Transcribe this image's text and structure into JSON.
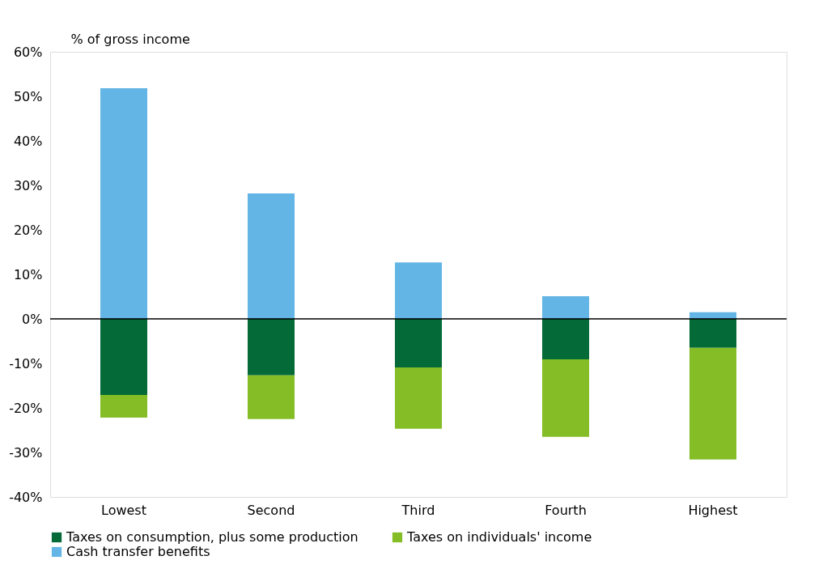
{
  "chart_data": {
    "type": "bar",
    "stacked": true,
    "ylabel": "% of gross income",
    "categories": [
      "Lowest",
      "Second",
      "Third",
      "Fourth",
      "Highest"
    ],
    "series": [
      {
        "name": "Taxes on consumption, plus some production",
        "color": "#046a38",
        "values": [
          -17.1,
          -12.7,
          -10.9,
          -9.1,
          -6.5
        ]
      },
      {
        "name": "Taxes on individuals' income",
        "color": "#84bd26",
        "values": [
          -5.1,
          -9.8,
          -13.8,
          -17.4,
          -25.1
        ]
      },
      {
        "name": "Cash transfer benefits",
        "color": "#63b5e5",
        "values": [
          51.8,
          28.2,
          12.7,
          5.1,
          1.5
        ]
      }
    ],
    "ylim": [
      -40,
      60
    ],
    "yticks": [
      {
        "value": -40,
        "label": "-40%"
      },
      {
        "value": -30,
        "label": "-30%"
      },
      {
        "value": -20,
        "label": "-20%"
      },
      {
        "value": -10,
        "label": "-10%"
      },
      {
        "value": 0,
        "label": "0%"
      },
      {
        "value": 10,
        "label": "10%"
      },
      {
        "value": 20,
        "label": "20%"
      },
      {
        "value": 30,
        "label": "30%"
      },
      {
        "value": 40,
        "label": "40%"
      },
      {
        "value": 50,
        "label": "50%"
      },
      {
        "value": 60,
        "label": "60%"
      }
    ],
    "ref_lines": [
      {
        "axis": "y",
        "value": 0,
        "label": null,
        "color": "#000000"
      }
    ],
    "grid": false,
    "legend": "bottom"
  }
}
